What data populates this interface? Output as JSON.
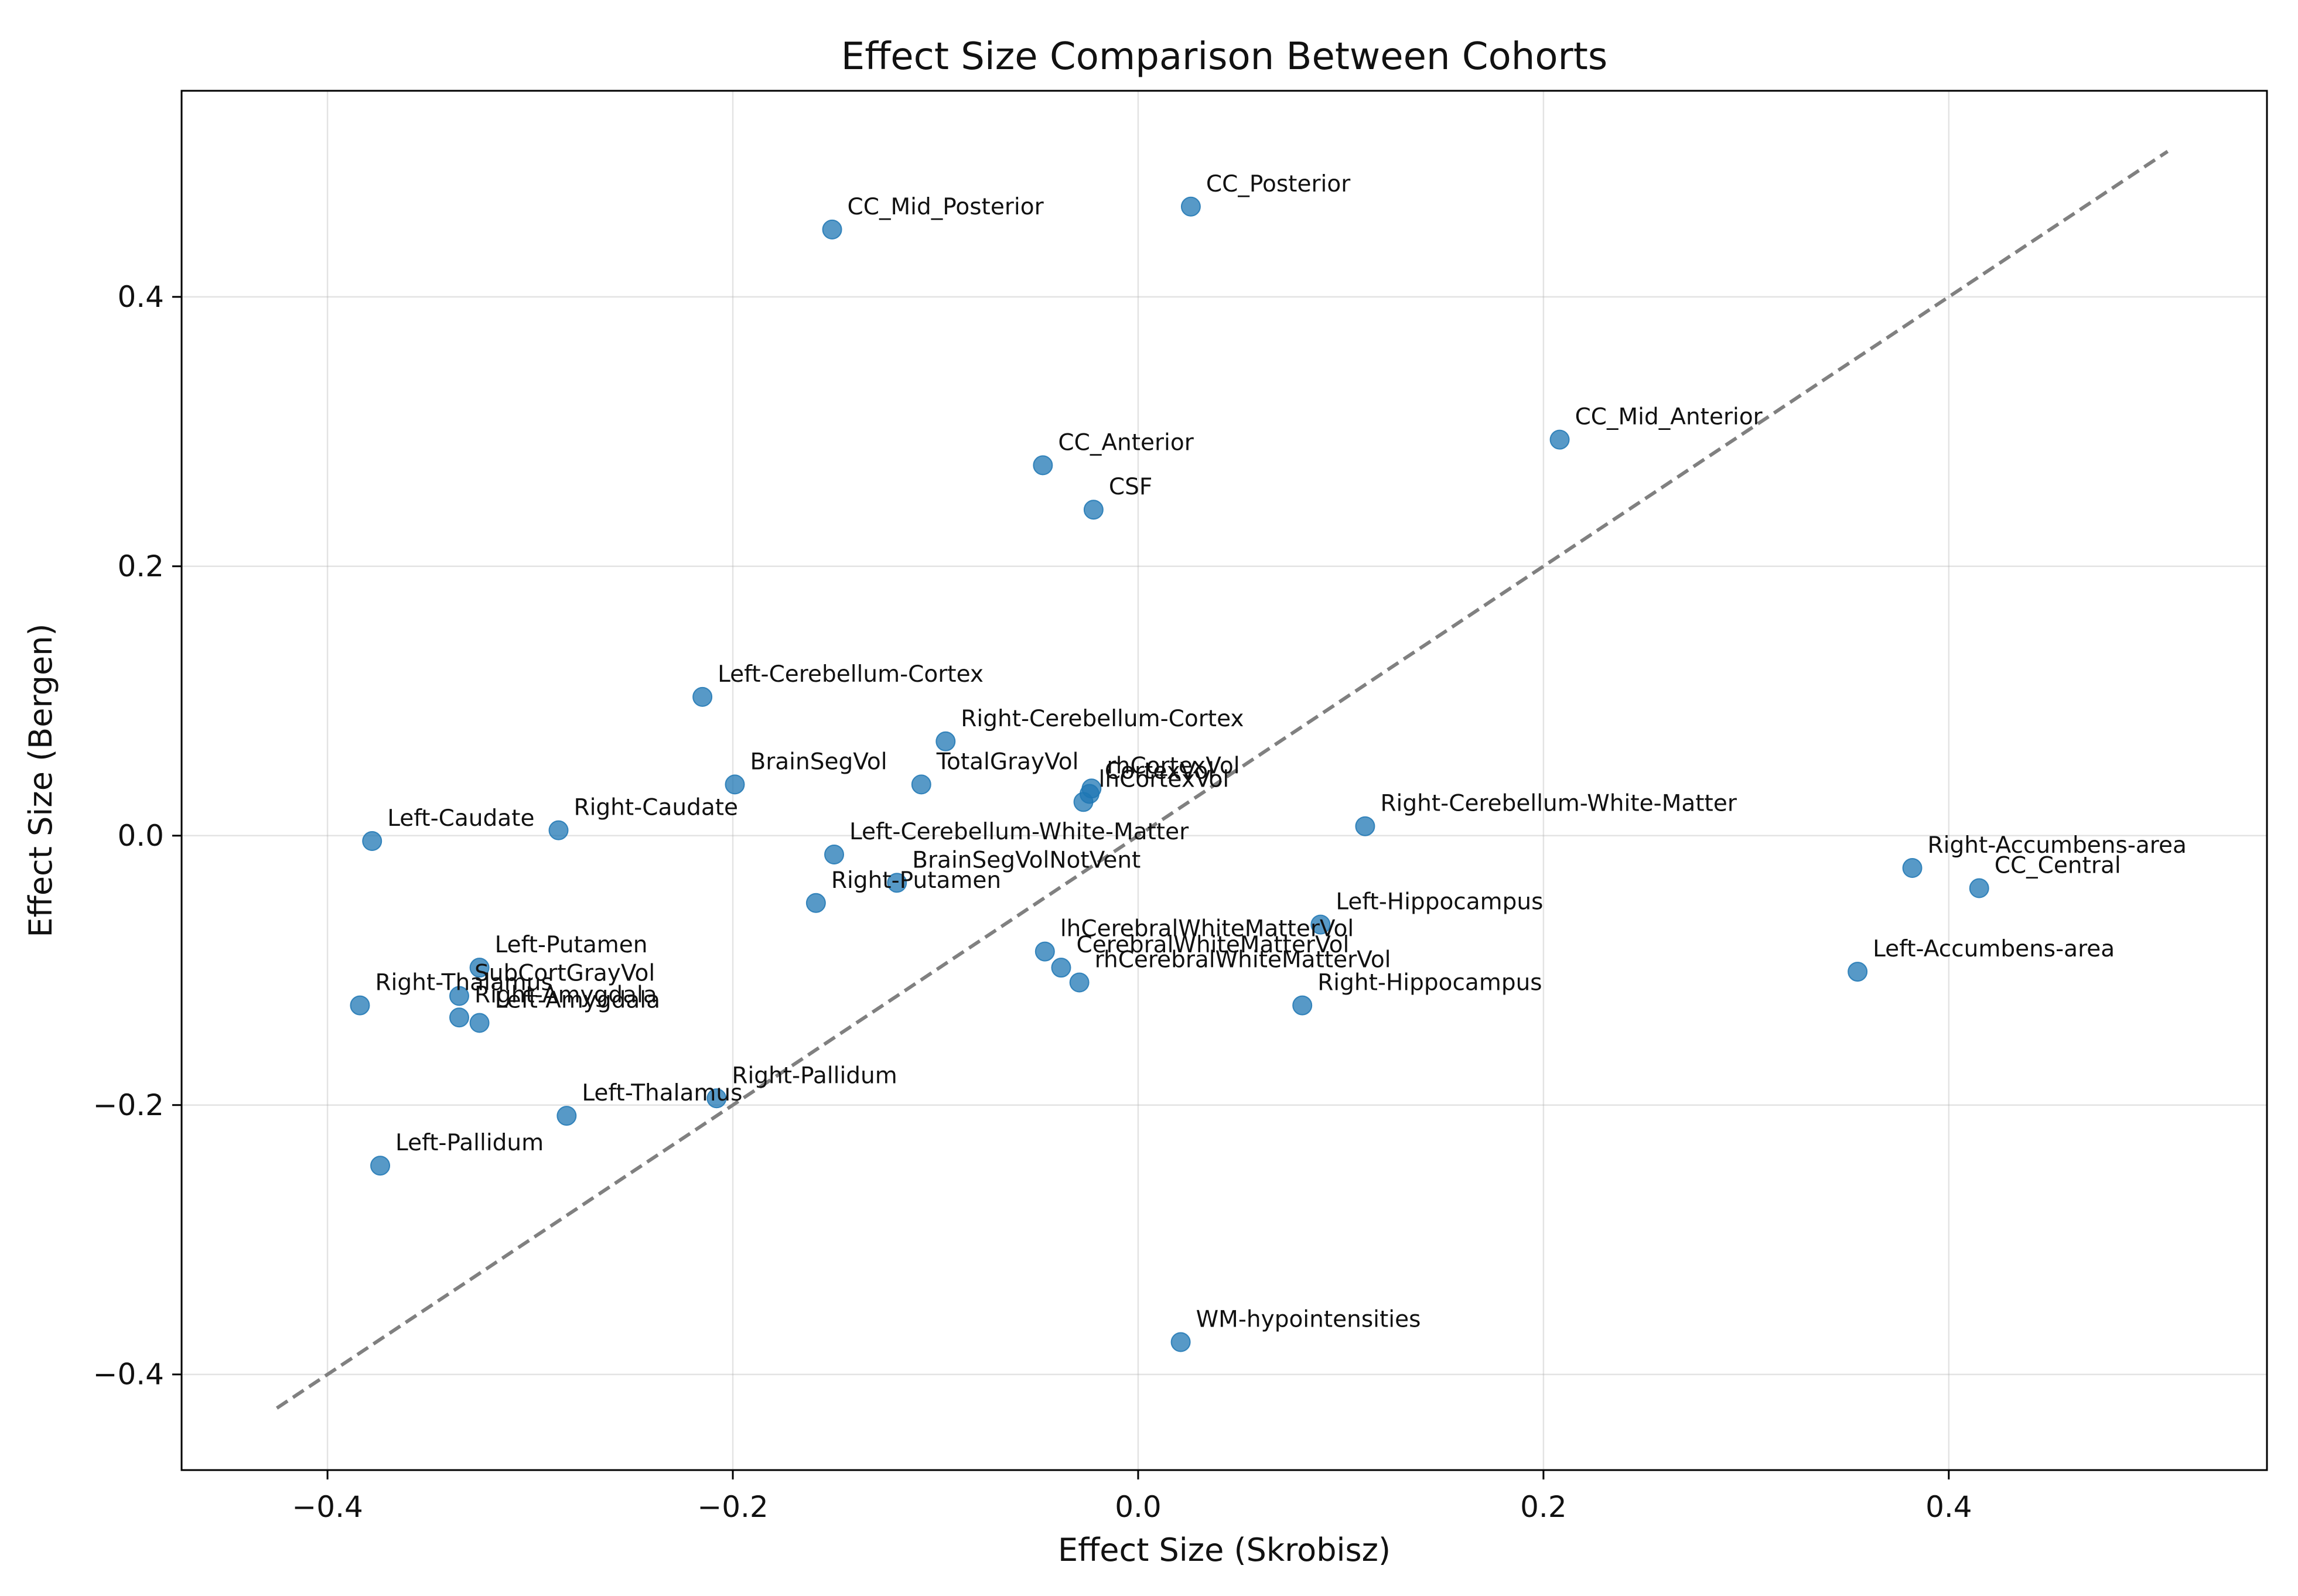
{
  "chart_data": {
    "type": "scatter",
    "title": "Effect Size Comparison Between Cohorts",
    "xlabel": "Effect Size (Skrobisz)",
    "ylabel": "Effect Size (Bergen)",
    "xlim": [
      -0.472,
      0.557
    ],
    "ylim": [
      -0.471,
      0.553
    ],
    "grid": true,
    "x_ticks": [
      -0.4,
      -0.2,
      0.0,
      0.2,
      0.4
    ],
    "x_tick_labels": [
      "−0.4",
      "−0.2",
      "0.0",
      "0.2",
      "0.4"
    ],
    "y_ticks": [
      -0.4,
      -0.2,
      0.0,
      0.2,
      0.4
    ],
    "y_tick_labels": [
      "−0.4",
      "−0.2",
      "0.0",
      "0.2",
      "0.4"
    ],
    "reference_line": {
      "style": "dashed",
      "color": "#808080",
      "x": [
        -0.425,
        0.508
      ],
      "y": [
        -0.425,
        0.508
      ]
    },
    "marker_color": "#1f77b4",
    "points": [
      {
        "label": "CC_Mid_Posterior",
        "x": -0.151,
        "y": 0.45
      },
      {
        "label": "CC_Posterior",
        "x": 0.026,
        "y": 0.467
      },
      {
        "label": "CC_Mid_Anterior",
        "x": 0.208,
        "y": 0.294
      },
      {
        "label": "CC_Anterior",
        "x": -0.047,
        "y": 0.275
      },
      {
        "label": "CSF",
        "x": -0.022,
        "y": 0.242
      },
      {
        "label": "Left-Cerebellum-Cortex",
        "x": -0.215,
        "y": 0.103
      },
      {
        "label": "Right-Cerebellum-Cortex",
        "x": -0.095,
        "y": 0.07
      },
      {
        "label": "BrainSegVol",
        "x": -0.199,
        "y": 0.038
      },
      {
        "label": "TotalGrayVol",
        "x": -0.107,
        "y": 0.038
      },
      {
        "label": "rhCortexVol",
        "x": -0.023,
        "y": 0.035
      },
      {
        "label": "CortexVol",
        "x": -0.024,
        "y": 0.031
      },
      {
        "label": "lhCortexVol",
        "x": -0.027,
        "y": 0.025
      },
      {
        "label": "Right-Cerebellum-White-Matter",
        "x": 0.112,
        "y": 0.007
      },
      {
        "label": "Left-Caudate",
        "x": -0.378,
        "y": -0.004
      },
      {
        "label": "Right-Caudate",
        "x": -0.286,
        "y": 0.004
      },
      {
        "label": "Left-Cerebellum-White-Matter",
        "x": -0.15,
        "y": -0.014
      },
      {
        "label": "BrainSegVolNotVent",
        "x": -0.119,
        "y": -0.035
      },
      {
        "label": "Right-Putamen",
        "x": -0.159,
        "y": -0.05
      },
      {
        "label": "Right-Accumbens-area",
        "x": 0.382,
        "y": -0.024
      },
      {
        "label": "CC_Central",
        "x": 0.415,
        "y": -0.039
      },
      {
        "label": "Left-Hippocampus",
        "x": 0.09,
        "y": -0.066
      },
      {
        "label": "lhCerebralWhiteMatterVol",
        "x": -0.046,
        "y": -0.086
      },
      {
        "label": "CerebralWhiteMatterVol",
        "x": -0.038,
        "y": -0.098
      },
      {
        "label": "rhCerebralWhiteMatterVol",
        "x": -0.029,
        "y": -0.109
      },
      {
        "label": "Left-Accumbens-area",
        "x": 0.355,
        "y": -0.101
      },
      {
        "label": "Right-Hippocampus",
        "x": 0.081,
        "y": -0.126
      },
      {
        "label": "Left-Putamen",
        "x": -0.325,
        "y": -0.098
      },
      {
        "label": "SubCortGrayVol",
        "x": -0.335,
        "y": -0.119
      },
      {
        "label": "Right-Thalamus",
        "x": -0.384,
        "y": -0.126
      },
      {
        "label": "Right-Amygdala",
        "x": -0.335,
        "y": -0.135
      },
      {
        "label": "Left-Amygdala",
        "x": -0.325,
        "y": -0.139
      },
      {
        "label": "Left-Thalamus",
        "x": -0.282,
        "y": -0.208
      },
      {
        "label": "Right-Pallidum",
        "x": -0.208,
        "y": -0.195
      },
      {
        "label": "Left-Pallidum",
        "x": -0.374,
        "y": -0.245
      },
      {
        "label": "WM-hypointensities",
        "x": 0.021,
        "y": -0.376
      }
    ]
  }
}
